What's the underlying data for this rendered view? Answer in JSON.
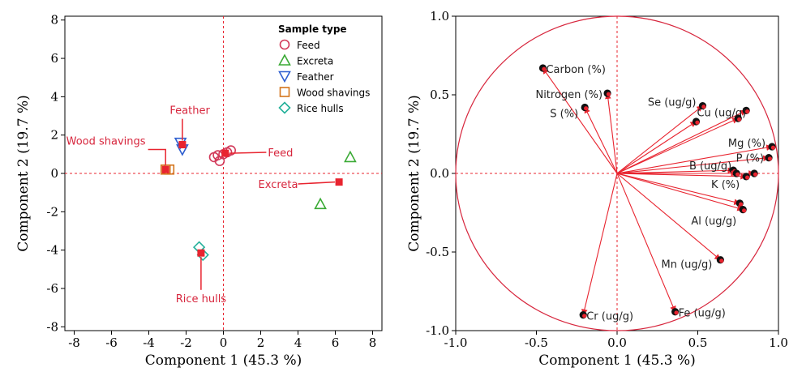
{
  "colors": {
    "feed": "#d23a5a",
    "excreta": "#3aaa35",
    "feather": "#2f5fd0",
    "wood": "#d4751c",
    "rice": "#23b09a",
    "accent_red": "#e8242f",
    "ref_line": "#e8242f",
    "circle": "#d7263d",
    "dot": "#111111"
  },
  "chart_data": [
    {
      "type": "scatter",
      "xlabel": "Component 1  (45.3 %)",
      "ylabel": "Component 2  (19.7 %)",
      "xlim": [
        -8.5,
        8.5
      ],
      "ylim": [
        -8.2,
        8.2
      ],
      "xticks": [
        "-8",
        "-6",
        "-4",
        "-2",
        "0",
        "2",
        "4",
        "6",
        "8"
      ],
      "yticks": [
        "-8",
        "-6",
        "-4",
        "-2",
        "0",
        "2",
        "4",
        "6",
        "8"
      ],
      "reference_lines": {
        "x": 0,
        "y": 0,
        "style": "dashed"
      },
      "legend": {
        "title": "Sample type",
        "placement": "top-right",
        "entries": [
          {
            "label": "Feed",
            "marker": "circle",
            "color_key": "feed"
          },
          {
            "label": "Excreta",
            "marker": "triangle-up",
            "color_key": "excreta"
          },
          {
            "label": "Feather",
            "marker": "triangle-down",
            "color_key": "feather"
          },
          {
            "label": "Wood shavings",
            "marker": "square",
            "color_key": "wood"
          },
          {
            "label": "Rice hulls",
            "marker": "diamond",
            "color_key": "rice"
          }
        ]
      },
      "series": [
        {
          "name": "Feed",
          "marker": "circle",
          "color_key": "feed",
          "points": [
            [
              -0.5,
              0.85
            ],
            [
              -0.2,
              0.65
            ],
            [
              0.0,
              1.0
            ],
            [
              0.2,
              1.1
            ],
            [
              0.4,
              1.2
            ],
            [
              -0.3,
              0.95
            ]
          ]
        },
        {
          "name": "Excreta",
          "marker": "triangle-up",
          "color_key": "excreta",
          "points": [
            [
              6.8,
              0.85
            ],
            [
              5.2,
              -1.6
            ]
          ]
        },
        {
          "name": "Feather",
          "marker": "triangle-down",
          "color_key": "feather",
          "points": [
            [
              -2.3,
              1.6
            ],
            [
              -2.2,
              1.25
            ]
          ]
        },
        {
          "name": "Wood shavings",
          "marker": "square",
          "color_key": "wood",
          "points": [
            [
              -3.1,
              0.2
            ],
            [
              -2.9,
              0.2
            ]
          ]
        },
        {
          "name": "Rice hulls",
          "marker": "diamond",
          "color_key": "rice",
          "points": [
            [
              -1.3,
              -3.85
            ],
            [
              -1.1,
              -4.25
            ]
          ]
        }
      ],
      "group_means": [
        {
          "label": "Feather",
          "x": -2.2,
          "y": 1.5,
          "label_x": -1.8,
          "label_y": 3.1
        },
        {
          "label": "Wood shavings",
          "x": -3.1,
          "y": 0.2,
          "label_x": -6.3,
          "label_y": 1.5
        },
        {
          "label": "Feed",
          "x": 0.1,
          "y": 1.05,
          "label_x": 2.3,
          "label_y": 1.1
        },
        {
          "label": "Excreta",
          "x": 6.2,
          "y": -0.45,
          "label_x": 4.0,
          "label_y": -0.55
        },
        {
          "label": "Rice hulls",
          "x": -1.2,
          "y": -4.15,
          "label_x": -1.2,
          "label_y": -6.5
        }
      ]
    },
    {
      "type": "scatter",
      "subtype": "loading-vectors",
      "xlabel": "Component 1  (45.3 %)",
      "ylabel": "Component 2  (19.7 %)",
      "xlim": [
        -1.0,
        1.0
      ],
      "ylim": [
        -1.0,
        1.0
      ],
      "xticks": [
        "-1.0",
        "-0.5",
        "0.0",
        "0.5",
        "1.0"
      ],
      "yticks": [
        "1.0",
        "0.5",
        "0.0",
        "-0.5",
        "-1.0"
      ],
      "unit_circle": true,
      "reference_lines": {
        "x": 0,
        "y": 0,
        "style": "dashed"
      },
      "vectors": [
        {
          "label": "Carbon (%)",
          "x": -0.46,
          "y": 0.67,
          "anchor": "start",
          "dx": 4,
          "dy": 6
        },
        {
          "label": "Nitrogen (%)",
          "x": -0.06,
          "y": 0.51,
          "anchor": "end",
          "dx": -6,
          "dy": 6
        },
        {
          "label": "S (%)",
          "x": -0.2,
          "y": 0.42,
          "anchor": "end",
          "dx": -8,
          "dy": 12
        },
        {
          "label": "Se (ug/g)",
          "x": 0.53,
          "y": 0.43,
          "anchor": "end",
          "dx": -8,
          "dy": 0
        },
        {
          "label": "Cu (ug/g)",
          "x": 0.8,
          "y": 0.4,
          "anchor": "end",
          "dx": 0,
          "dy": 7
        },
        {
          "label": "",
          "x": 0.49,
          "y": 0.33
        },
        {
          "label": "",
          "x": 0.75,
          "y": 0.35
        },
        {
          "label": "Mg (%)",
          "x": 0.96,
          "y": 0.17,
          "anchor": "end",
          "dx": -8,
          "dy": 0
        },
        {
          "label": "P (%)",
          "x": 0.94,
          "y": 0.1,
          "anchor": "end",
          "dx": -6,
          "dy": 5
        },
        {
          "label": "B (ug/g)",
          "x": 0.72,
          "y": 0.02,
          "anchor": "end",
          "dx": -2,
          "dy": -1
        },
        {
          "label": "",
          "x": 0.85,
          "y": 0.0
        },
        {
          "label": "K (%)",
          "x": 0.8,
          "y": -0.02,
          "anchor": "end",
          "dx": -8,
          "dy": 14
        },
        {
          "label": "",
          "x": 0.74,
          "y": 0.0
        },
        {
          "label": "Al (ug/g)",
          "x": 0.76,
          "y": -0.19,
          "anchor": "end",
          "dx": -4,
          "dy": 26
        },
        {
          "label": "",
          "x": 0.78,
          "y": -0.23
        },
        {
          "label": "Mn (ug/g)",
          "x": 0.64,
          "y": -0.55,
          "anchor": "end",
          "dx": -10,
          "dy": 10
        },
        {
          "label": "Fe (ug/g)",
          "x": 0.36,
          "y": -0.88,
          "anchor": "start",
          "dx": 4,
          "dy": 6
        },
        {
          "label": "Cr (ug/g)",
          "x": -0.21,
          "y": -0.9,
          "anchor": "start",
          "dx": 4,
          "dy": 6
        }
      ]
    }
  ]
}
